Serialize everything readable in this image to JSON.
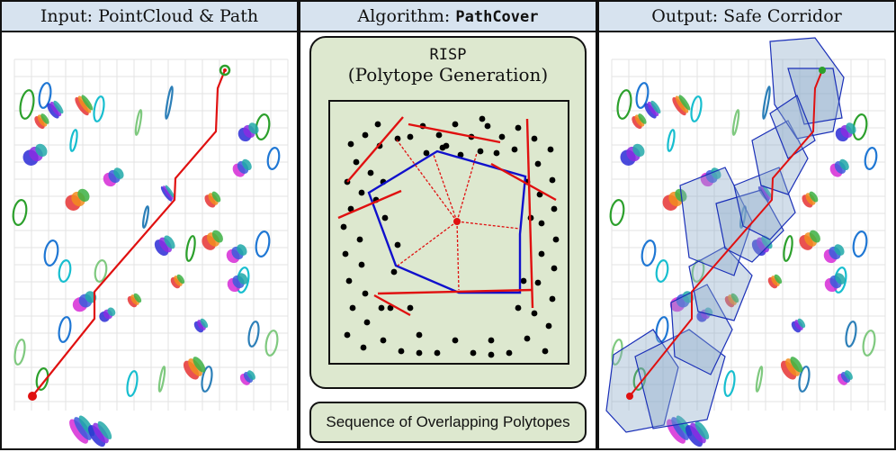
{
  "panels": {
    "input": {
      "title": "Input: PointCloud & Path"
    },
    "algorithm": {
      "title_prefix": "Algorithm: ",
      "title_code": "PathCover",
      "risp_code": "RISP",
      "risp_label": "(Polytope Generation)",
      "sequence_label": "Sequence of Overlapping Polytopes"
    },
    "output": {
      "title": "Output: Safe Corridor"
    }
  },
  "colors": {
    "header_bg": "#d7e3ef",
    "algo_bg": "#dde8cf",
    "path": "#e01010",
    "polytope_edge": "#1010cc",
    "halfplane": "#e01010",
    "corridor_fill": "#8aa9c9",
    "corridor_edge": "#1a2fb8"
  },
  "icons": {
    "start": "start-point-dot",
    "goal": "goal-point-dot",
    "obstacle": "obstacle-point"
  }
}
